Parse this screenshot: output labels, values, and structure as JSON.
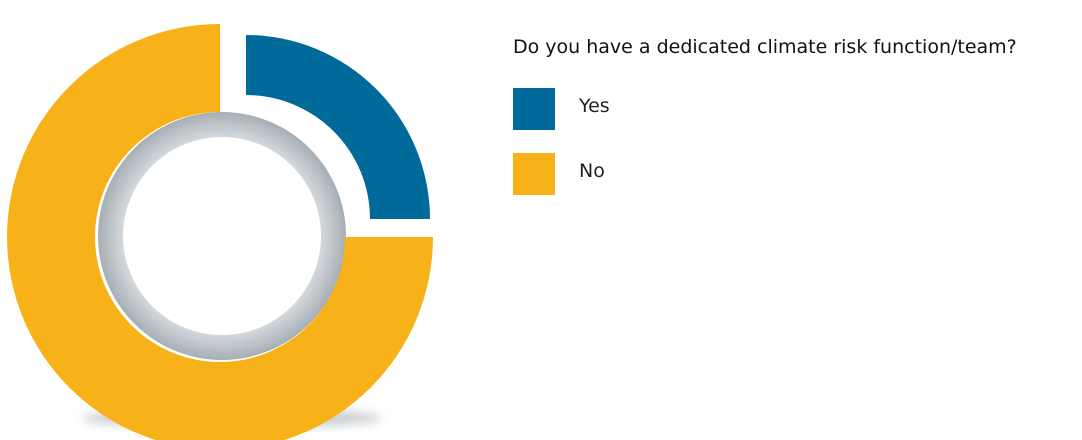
{
  "chart_data": {
    "type": "pie",
    "style": "donut",
    "title": "Do you have a dedicated climate risk function/team?",
    "categories": [
      "Yes",
      "No"
    ],
    "values": [
      25,
      75
    ],
    "colors": [
      "#006b9b",
      "#f8b219"
    ],
    "legend_position": "right"
  }
}
